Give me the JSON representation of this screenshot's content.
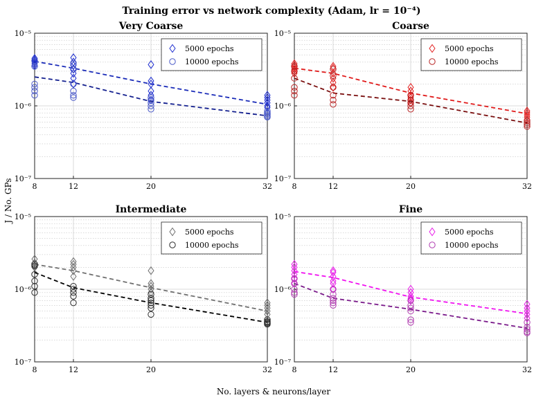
{
  "figure": {
    "title": "Training error vs network complexity (Adam, lr = 10⁻⁴)",
    "xlabel": "No. layers & neurons/layer",
    "ylabel": "J / No. GPs"
  },
  "chart_data": [
    {
      "type": "scatter",
      "title": "Very Coarse",
      "x": [
        8,
        12,
        20,
        32
      ],
      "xticks": [
        "8",
        "12",
        "20",
        "32"
      ],
      "ylim": [
        1e-07,
        1e-05
      ],
      "yscale": "log",
      "yticks": [
        "10⁻⁷",
        "10⁻⁶",
        "10⁻⁵"
      ],
      "grid": true,
      "legend_position": "top-right",
      "series": [
        {
          "name": "5000 epochs",
          "marker": "diamond",
          "color": "#1f2fd0",
          "fit_color": "#1a2bb8",
          "points": {
            "8": [
              4.5e-06,
              4.3e-06,
              4.2e-06,
              4e-06,
              3.8e-06,
              3.6e-06
            ],
            "12": [
              4.6e-06,
              4e-06,
              3.6e-06,
              3.2e-06,
              2.8e-06,
              2.4e-06,
              2e-06
            ],
            "20": [
              3.7e-06,
              2.2e-06,
              2e-06,
              1.6e-06,
              1.4e-06,
              1.2e-06
            ],
            "32": [
              1.4e-06,
              1.3e-06,
              1.2e-06,
              1.1e-06,
              1e-06,
              9.5e-07
            ]
          },
          "fit": [
            4.1e-06,
            3.3e-06,
            2e-06,
            1.05e-06
          ]
        },
        {
          "name": "10000 epochs",
          "marker": "circle",
          "color": "#4a59c8",
          "fit_color": "#14208f",
          "points": {
            "8": [
              4.2e-06,
              3.5e-06,
              2e-06,
              1.8e-06,
              1.6e-06,
              1.4e-06
            ],
            "12": [
              3.8e-06,
              3.2e-06,
              2e-06,
              1.6e-06,
              1.4e-06,
              1.3e-06
            ],
            "20": [
              1.3e-06,
              1.2e-06,
              1.1e-06,
              1e-06,
              9e-07
            ],
            "32": [
              8.5e-07,
              8e-07,
              7.8e-07,
              7.5e-07,
              7.2e-07,
              7e-07
            ]
          },
          "fit": [
            2.5e-06,
            2.1e-06,
            1.15e-06,
            7.3e-07
          ]
        }
      ]
    },
    {
      "type": "scatter",
      "title": "Coarse",
      "x": [
        8,
        12,
        20,
        32
      ],
      "xticks": [
        "8",
        "12",
        "20",
        "32"
      ],
      "ylim": [
        1e-07,
        1e-05
      ],
      "yscale": "log",
      "yticks": [
        "10⁻⁷",
        "10⁻⁶",
        "10⁻⁵"
      ],
      "grid": true,
      "legend_position": "top-right",
      "series": [
        {
          "name": "5000 epochs",
          "marker": "diamond",
          "color": "#e32020",
          "fit_color": "#e01818",
          "points": {
            "8": [
              3.8e-06,
              3.6e-06,
              3.4e-06,
              3.2e-06,
              3e-06,
              2.8e-06
            ],
            "12": [
              3.5e-06,
              3.3e-06,
              2.8e-06,
              2.4e-06,
              2.1e-06,
              1.8e-06
            ],
            "20": [
              1.8e-06,
              1.6e-06,
              1.4e-06,
              1.3e-06,
              1.2e-06,
              1.1e-06
            ],
            "32": [
              8.5e-07,
              8e-07,
              7.5e-07,
              7e-07,
              6.5e-07
            ]
          },
          "fit": [
            3.3e-06,
            2.8e-06,
            1.5e-06,
            7.8e-07
          ]
        },
        {
          "name": "10000 epochs",
          "marker": "circle",
          "color": "#b82525",
          "fit_color": "#7a0f0f",
          "points": {
            "8": [
              3.5e-06,
              3e-06,
              2.4e-06,
              1.8e-06,
              1.6e-06,
              1.4e-06
            ],
            "12": [
              3.2e-06,
              2.6e-06,
              1.8e-06,
              1.4e-06,
              1.2e-06,
              1.05e-06
            ],
            "20": [
              1.4e-06,
              1.2e-06,
              1.1e-06,
              1e-06,
              9e-07
            ],
            "32": [
              6.2e-07,
              5.8e-07,
              5.5e-07,
              5.2e-07
            ]
          },
          "fit": [
            2.4e-06,
            1.5e-06,
            1.15e-06,
            5.8e-07
          ]
        }
      ]
    },
    {
      "type": "scatter",
      "title": "Intermediate",
      "x": [
        8,
        12,
        20,
        32
      ],
      "xticks": [
        "8",
        "12",
        "20",
        "32"
      ],
      "ylim": [
        1e-07,
        1e-05
      ],
      "yscale": "log",
      "yticks": [
        "10⁻⁷",
        "10⁻⁶",
        "10⁻⁵"
      ],
      "grid": true,
      "legend_position": "top-right",
      "series": [
        {
          "name": "5000 epochs",
          "marker": "diamond",
          "color": "#6e6e6e",
          "fit_color": "#707070",
          "points": {
            "8": [
              2.6e-06,
              2.3e-06,
              2.1e-06,
              2e-06
            ],
            "12": [
              2.4e-06,
              2.2e-06,
              2e-06,
              1.8e-06,
              1.5e-06
            ],
            "20": [
              1.8e-06,
              1.2e-06,
              1.1e-06,
              1e-06,
              9e-07
            ],
            "32": [
              6.5e-07,
              6e-07,
              5.5e-07,
              5e-07,
              4.5e-07
            ]
          },
          "fit": [
            2.2e-06,
            1.8e-06,
            1.05e-06,
            5e-07
          ]
        },
        {
          "name": "10000 epochs",
          "marker": "circle",
          "color": "#2a2a2a",
          "fit_color": "#000000",
          "points": {
            "8": [
              2.2e-06,
              2.1e-06,
              1.6e-06,
              1.3e-06,
              1.1e-06,
              9e-07
            ],
            "12": [
              1.1e-06,
              1e-06,
              9e-07,
              8e-07,
              6.5e-07
            ],
            "20": [
              8.5e-07,
              7.5e-07,
              7e-07,
              6.5e-07,
              6e-07,
              5.5e-07,
              4.5e-07
            ],
            "32": [
              3.8e-07,
              3.6e-07,
              3.5e-07,
              3.4e-07,
              3.3e-07
            ]
          },
          "fit": [
            1.7e-06,
            1.05e-06,
            6.5e-07,
            3.5e-07
          ]
        }
      ]
    },
    {
      "type": "scatter",
      "title": "Fine",
      "x": [
        8,
        12,
        20,
        32
      ],
      "xticks": [
        "8",
        "12",
        "20",
        "32"
      ],
      "ylim": [
        1e-07,
        1e-05
      ],
      "yscale": "log",
      "yticks": [
        "10⁻⁷",
        "10⁻⁶",
        "10⁻⁵"
      ],
      "grid": true,
      "legend_position": "top-right",
      "series": [
        {
          "name": "5000 epochs",
          "marker": "diamond",
          "color": "#e81ce8",
          "fit_color": "#f010f0",
          "points": {
            "8": [
              2.2e-06,
              2e-06,
              1.8e-06,
              1.6e-06,
              1.4e-06,
              1.2e-06
            ],
            "12": [
              1.8e-06,
              1.7e-06,
              1.5e-06,
              1.3e-06,
              1.2e-06,
              1e-06
            ],
            "20": [
              1e-06,
              9e-07,
              8e-07,
              7.5e-07,
              7e-07
            ],
            "32": [
              6.2e-07,
              5.5e-07,
              5e-07,
              4.5e-07,
              4e-07
            ]
          },
          "fit": [
            1.75e-06,
            1.45e-06,
            7.8e-07,
            4.6e-07
          ]
        },
        {
          "name": "10000 epochs",
          "marker": "circle",
          "color": "#b03cb0",
          "fit_color": "#7a1a8a",
          "points": {
            "8": [
              1.4e-06,
              1.2e-06,
              1e-06,
              9e-07,
              8.5e-07
            ],
            "12": [
              1e-06,
              8.5e-07,
              7.5e-07,
              7e-07,
              6.5e-07,
              6e-07
            ],
            "20": [
              7e-07,
              6e-07,
              5.5e-07,
              5e-07,
              3.8e-07,
              3.5e-07
            ],
            "32": [
              3.5e-07,
              3e-07,
              2.8e-07,
              2.6e-07,
              2.5e-07
            ]
          },
          "fit": [
            1.2e-06,
            7.5e-07,
            5.3e-07,
            2.9e-07
          ]
        }
      ]
    }
  ]
}
